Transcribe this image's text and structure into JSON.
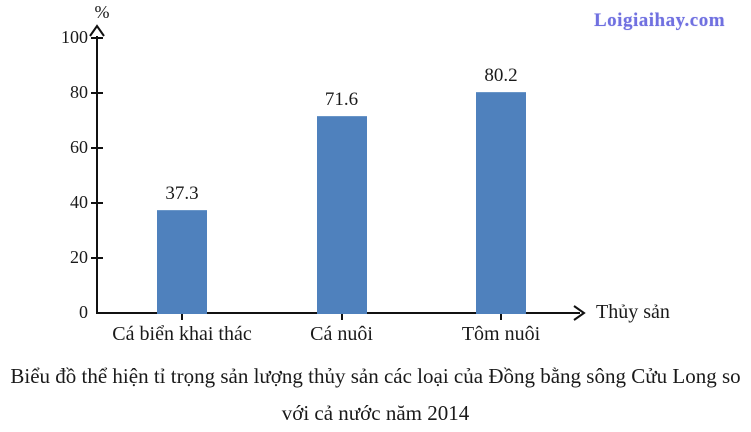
{
  "watermark": "Loigiaihay.com",
  "chart_data": {
    "type": "bar",
    "categories": [
      "Cá biển khai thác",
      "Cá nuôi",
      "Tôm nuôi"
    ],
    "values": [
      37.3,
      71.6,
      80.2
    ],
    "value_labels": [
      "37.3",
      "71.6",
      "80.2"
    ],
    "title": "Biểu đồ thể hiện tỉ trọng sản lượng thủy sản các loại của Đồng bằng sông Cửu Long so với cả nước năm 2014",
    "xlabel": "Thủy sản",
    "ylabel": "%",
    "yticks": [
      0,
      20,
      40,
      60,
      80,
      100
    ],
    "ylim": [
      0,
      100
    ],
    "grid": false,
    "legend": "none",
    "bar_color": "#4f81bd"
  },
  "caption": {
    "lines": [
      "Biểu đồ thể hiện tỉ trọng sản lượng thủy sản các loại của Đồng bằng sông Cửu Long so",
      "với cả nước năm 2014"
    ]
  },
  "colors": {
    "bar": "#4f81bd",
    "axis": "#111111",
    "watermark": "#7070e0",
    "text": "#1a1a1a"
  }
}
